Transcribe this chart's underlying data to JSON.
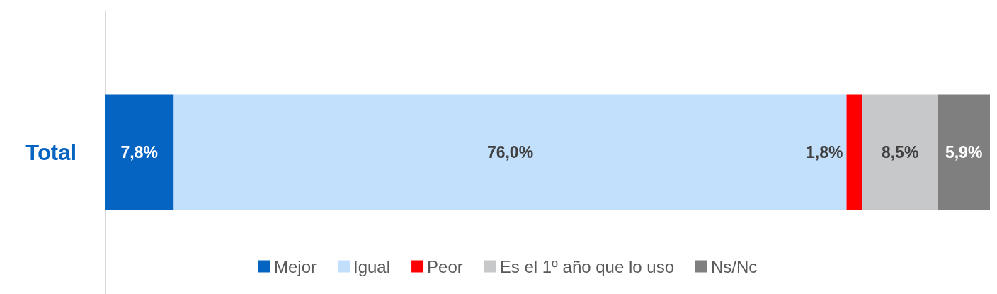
{
  "chart_data": {
    "type": "bar",
    "orientation": "horizontal",
    "stacked": true,
    "categories": [
      "Total"
    ],
    "legend": "bottom",
    "series": [
      {
        "name": "Mejor",
        "color": "#0563c1",
        "values": [
          7.8
        ],
        "value_labels": [
          "7,8%"
        ]
      },
      {
        "name": "Igual",
        "color": "#c2e0fb",
        "values": [
          76.0
        ],
        "value_labels": [
          "76,0%"
        ]
      },
      {
        "name": "Peor",
        "color": "#ff0000",
        "values": [
          1.8
        ],
        "value_labels": [
          "1,8%"
        ]
      },
      {
        "name": "Es el 1º año que lo uso",
        "color": "#c7c8ca",
        "values": [
          8.5
        ],
        "value_labels": [
          "8,5%"
        ]
      },
      {
        "name": "Ns/Nc",
        "color": "#7f7f7f",
        "values": [
          5.9
        ],
        "value_labels": [
          "5,9%"
        ]
      }
    ]
  }
}
